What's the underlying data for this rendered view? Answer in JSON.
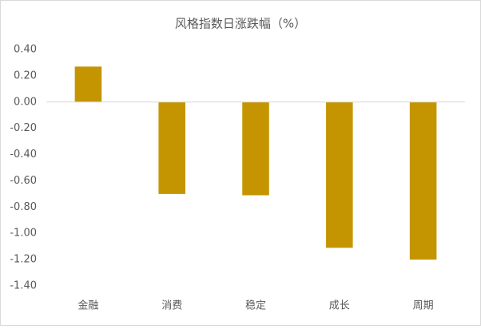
{
  "chart_data": {
    "type": "bar",
    "title": "风格指数日涨跌幅（%）",
    "categories": [
      "金融",
      "消费",
      "稳定",
      "成长",
      "周期"
    ],
    "values": [
      0.27,
      -0.7,
      -0.71,
      -1.11,
      -1.2
    ],
    "color": "#c49500",
    "ylim": [
      -1.4,
      0.4
    ],
    "yticks": [
      {
        "value": 0.4,
        "label": "0.40"
      },
      {
        "value": 0.2,
        "label": "0.20"
      },
      {
        "value": 0,
        "label": "0.00"
      },
      {
        "value": -0.2,
        "label": "-0.20"
      },
      {
        "value": -0.4,
        "label": "-0.40"
      },
      {
        "value": -0.6,
        "label": "-0.60"
      },
      {
        "value": -0.8,
        "label": "-0.80"
      },
      {
        "value": -1.0,
        "label": "-1.00"
      },
      {
        "value": -1.2,
        "label": "-1.20"
      },
      {
        "value": -1.4,
        "label": "-1.40"
      }
    ],
    "grid": false
  }
}
